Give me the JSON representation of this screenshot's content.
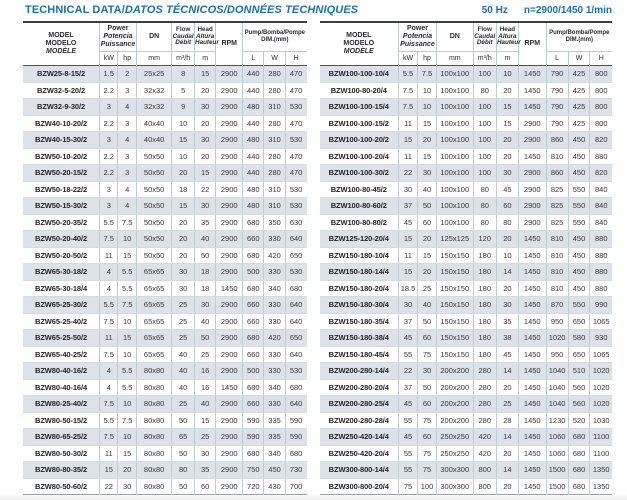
{
  "page": {
    "title_main": "TECHNICAL DATA/",
    "title_italic": "DATOS TÉCNICOS/DONNÉES TECHNIQUES",
    "frequency": "50 Hz",
    "speed": "n=2900/1450 1/min"
  },
  "colors": {
    "accent_blue": "#1a6fb4",
    "row_shade": "#dce2e8"
  },
  "table_header": {
    "model_lines": [
      "MODEL",
      "MODELO",
      "MODÈLE"
    ],
    "power_lines": [
      "Power",
      "Potencia",
      "Puissance"
    ],
    "dn_label": "DN",
    "flow_lines": [
      "Flow",
      "Caudal",
      "Débit"
    ],
    "head_lines": [
      "Head",
      "Altura",
      "Hauteur"
    ],
    "rpm_label": "RPM",
    "dim_lines": [
      "Pump/Bomba/Pompe",
      "DIM.(mm)"
    ],
    "units": [
      "kW",
      "hp",
      "mm",
      "m³/h",
      "m",
      "L",
      "W",
      "H"
    ]
  },
  "left_table_rows": [
    [
      "BZW25-8-15/2",
      "1.5",
      "2",
      "25x25",
      "8",
      "15",
      "2900",
      "440",
      "280",
      "470"
    ],
    [
      "BZW32-5-20/2",
      "2.2",
      "3",
      "32x32",
      "5",
      "20",
      "2900",
      "440",
      "280",
      "470"
    ],
    [
      "BZW32-9-30/2",
      "3",
      "4",
      "32x32",
      "9",
      "30",
      "2900",
      "480",
      "310",
      "530"
    ],
    [
      "BZW40-10-20/2",
      "2.2",
      "3",
      "40x40",
      "10",
      "20",
      "2900",
      "440",
      "280",
      "470"
    ],
    [
      "BZW40-15-30/2",
      "3",
      "4",
      "40x40",
      "15",
      "30",
      "2900",
      "480",
      "310",
      "530"
    ],
    [
      "BZW50-10-20/2",
      "2.2",
      "3",
      "50x50",
      "10",
      "20",
      "2900",
      "440",
      "280",
      "470"
    ],
    [
      "BZW50-20-15/2",
      "2.2",
      "3",
      "50x50",
      "20",
      "15",
      "2900",
      "440",
      "280",
      "470"
    ],
    [
      "BZW50-18-22/2",
      "3",
      "4",
      "50x50",
      "18",
      "22",
      "2900",
      "480",
      "310",
      "530"
    ],
    [
      "BZW50-15-30/2",
      "3",
      "4",
      "50x50",
      "15",
      "30",
      "2900",
      "480",
      "310",
      "530"
    ],
    [
      "BZW50-20-35/2",
      "5.5",
      "7.5",
      "50x50",
      "20",
      "35",
      "2900",
      "680",
      "350",
      "630"
    ],
    [
      "BZW50-20-40/2",
      "7.5",
      "10",
      "50x50",
      "20",
      "40",
      "2900",
      "660",
      "330",
      "640"
    ],
    [
      "BZW50-20-50/2",
      "11",
      "15",
      "50x50",
      "20",
      "50",
      "2900",
      "680",
      "420",
      "650"
    ],
    [
      "BZW65-30-18/2",
      "4",
      "5.5",
      "65x65",
      "30",
      "18",
      "2900",
      "500",
      "330",
      "530"
    ],
    [
      "BZW65-30-18/4",
      "4",
      "5.5",
      "65x65",
      "30",
      "18",
      "1450",
      "680",
      "340",
      "680"
    ],
    [
      "BZW65-25-30/2",
      "5.5",
      "7.5",
      "65x65",
      "25",
      "30",
      "2900",
      "660",
      "330",
      "640"
    ],
    [
      "BZW65-25-40/2",
      "7.5",
      "10",
      "65x65",
      "25",
      "40",
      "2900",
      "660",
      "330",
      "640"
    ],
    [
      "BZW65-25-50/2",
      "11",
      "15",
      "65x65",
      "25",
      "50",
      "2900",
      "680",
      "420",
      "650"
    ],
    [
      "BZW65-40-25/2",
      "7.5",
      "10",
      "65x65",
      "40",
      "25",
      "2900",
      "660",
      "330",
      "640"
    ],
    [
      "BZW80-40-16/2",
      "4",
      "5.5",
      "80x80",
      "40",
      "16",
      "2900",
      "500",
      "330",
      "530"
    ],
    [
      "BZW80-40-16/4",
      "4",
      "5.5",
      "80x80",
      "40",
      "16",
      "1450",
      "680",
      "340",
      "680"
    ],
    [
      "BZW80-25-40/2",
      "7.5",
      "10",
      "80x80",
      "25",
      "40",
      "2900",
      "660",
      "330",
      "640"
    ],
    [
      "BZW80-50-15/2",
      "5.5",
      "7.5",
      "80x80",
      "50",
      "15",
      "2900",
      "590",
      "335",
      "590"
    ],
    [
      "BZW80-65-25/2",
      "7.5",
      "10",
      "80x80",
      "65",
      "25",
      "2900",
      "590",
      "335",
      "590"
    ],
    [
      "BZW80-50-30/2",
      "11",
      "15",
      "80x80",
      "50",
      "30",
      "2900",
      "680",
      "340",
      "680"
    ],
    [
      "BZW80-80-35/2",
      "15",
      "20",
      "80x80",
      "80",
      "35",
      "2900",
      "750",
      "450",
      "730"
    ],
    [
      "BZW80-50-60/2",
      "22",
      "30",
      "80x80",
      "50",
      "60",
      "2900",
      "720",
      "430",
      "700"
    ]
  ],
  "right_table_rows": [
    [
      "BZW100-100-10/4",
      "5.5",
      "7.5",
      "100x100",
      "100",
      "10",
      "1450",
      "790",
      "425",
      "800"
    ],
    [
      "BZW100-80-20/4",
      "7.5",
      "10",
      "100x100",
      "80",
      "20",
      "1450",
      "790",
      "425",
      "800"
    ],
    [
      "BZW100-100-15/4",
      "7.5",
      "10",
      "100x100",
      "100",
      "15",
      "1450",
      "790",
      "425",
      "800"
    ],
    [
      "BZW100-100-15/2",
      "11",
      "15",
      "100x100",
      "100",
      "15",
      "2900",
      "790",
      "425",
      "800"
    ],
    [
      "BZW100-100-20/2",
      "15",
      "20",
      "100x100",
      "100",
      "20",
      "2900",
      "860",
      "450",
      "820"
    ],
    [
      "BZW100-100-20/4",
      "11",
      "15",
      "100x100",
      "100",
      "20",
      "1450",
      "810",
      "450",
      "880"
    ],
    [
      "BZW100-100-30/2",
      "22",
      "30",
      "100x100",
      "100",
      "30",
      "2900",
      "860",
      "450",
      "820"
    ],
    [
      "BZW100-80-45/2",
      "30",
      "40",
      "100x100",
      "80",
      "45",
      "2900",
      "825",
      "550",
      "840"
    ],
    [
      "BZW100-80-60/2",
      "37",
      "50",
      "100x100",
      "80",
      "60",
      "2900",
      "825",
      "550",
      "840"
    ],
    [
      "BZW100-80-80/2",
      "45",
      "60",
      "100x100",
      "80",
      "80",
      "2900",
      "825",
      "550",
      "840"
    ],
    [
      "BZW125-120-20/4",
      "15",
      "20",
      "125x125",
      "120",
      "20",
      "1450",
      "810",
      "450",
      "880"
    ],
    [
      "BZW150-180-10/4",
      "11",
      "15",
      "150x150",
      "180",
      "10",
      "1450",
      "810",
      "450",
      "880"
    ],
    [
      "BZW150-180-14/4",
      "15",
      "20",
      "150x150",
      "180",
      "14",
      "1450",
      "810",
      "450",
      "880"
    ],
    [
      "BZW150-180-20/4",
      "18.5",
      "25",
      "150x150",
      "180",
      "20",
      "1450",
      "810",
      "450",
      "880"
    ],
    [
      "BZW150-180-30/4",
      "30",
      "40",
      "150x150",
      "180",
      "30",
      "1450",
      "870",
      "550",
      "990"
    ],
    [
      "BZW150-180-35/4",
      "37",
      "50",
      "150x150",
      "180",
      "35",
      "1450",
      "950",
      "650",
      "1065"
    ],
    [
      "BZW150-180-38/4",
      "45",
      "60",
      "150x150",
      "180",
      "38",
      "1450",
      "1020",
      "580",
      "930"
    ],
    [
      "BZW150-180-45/4",
      "55",
      "75",
      "150x150",
      "180",
      "45",
      "1450",
      "950",
      "650",
      "1065"
    ],
    [
      "BZW200-280-14/4",
      "22",
      "30",
      "200x200",
      "280",
      "14",
      "1450",
      "1040",
      "510",
      "1020"
    ],
    [
      "BZW200-280-20/4",
      "37",
      "50",
      "200x200",
      "280",
      "20",
      "1450",
      "1040",
      "560",
      "1020"
    ],
    [
      "BZW200-280-25/4",
      "45",
      "60",
      "200x200",
      "280",
      "25",
      "1450",
      "1040",
      "560",
      "1020"
    ],
    [
      "BZW200-280-28/4",
      "55",
      "75",
      "200x200",
      "280",
      "28",
      "1450",
      "1230",
      "520",
      "1030"
    ],
    [
      "BZW250-420-14/4",
      "45",
      "60",
      "250x250",
      "420",
      "14",
      "1450",
      "1060",
      "680",
      "1100"
    ],
    [
      "BZW250-420-20/4",
      "55",
      "75",
      "250x250",
      "420",
      "20",
      "1450",
      "1060",
      "680",
      "1100"
    ],
    [
      "BZW300-800-14/4",
      "55",
      "75",
      "300x300",
      "800",
      "14",
      "1450",
      "1500",
      "680",
      "1350"
    ],
    [
      "BZW300-800-20/4",
      "75",
      "100",
      "300x300",
      "800",
      "20",
      "1450",
      "1500",
      "680",
      "1350"
    ]
  ]
}
